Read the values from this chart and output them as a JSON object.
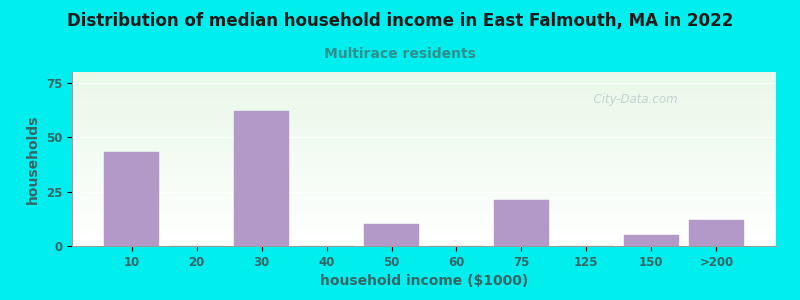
{
  "title": "Distribution of median household income in East Falmouth, MA in 2022",
  "subtitle": "Multirace residents",
  "xlabel": "household income ($1000)",
  "ylabel": "households",
  "bar_color": "#b399c8",
  "title_color": "#1a1a1a",
  "subtitle_color": "#2a9090",
  "axis_label_color": "#336666",
  "tick_label_color": "#336666",
  "background_outer": "#00eeee",
  "ylim": [
    0,
    80
  ],
  "yticks": [
    0,
    25,
    50,
    75
  ],
  "watermark": "  City-Data.com",
  "categories": [
    "10",
    "20",
    "30",
    "40",
    "50",
    "60",
    "75",
    "125",
    "150",
    ">200"
  ],
  "values": [
    43,
    0,
    62,
    0,
    10,
    0,
    21,
    0,
    5,
    12
  ],
  "bar_positions": [
    0,
    1,
    2,
    3,
    4,
    5,
    6,
    7,
    8,
    9
  ]
}
